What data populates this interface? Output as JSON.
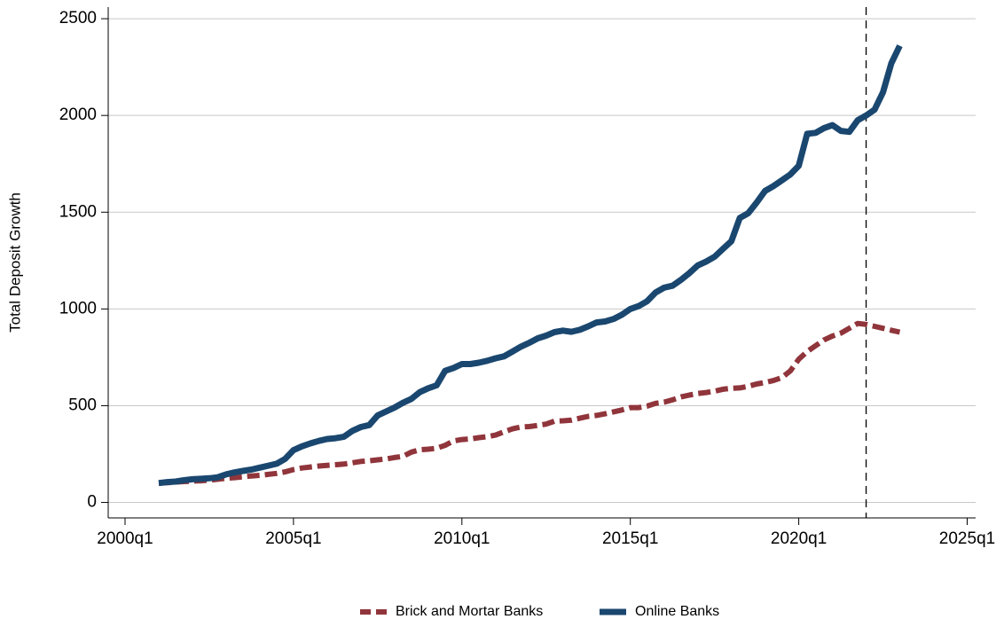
{
  "chart_data": {
    "type": "line",
    "y_label": "Total Deposit Growth",
    "x": [
      "2001q1",
      "2001q2",
      "2001q3",
      "2001q4",
      "2002q1",
      "2002q2",
      "2002q3",
      "2002q4",
      "2003q1",
      "2003q2",
      "2003q3",
      "2003q4",
      "2004q1",
      "2004q2",
      "2004q3",
      "2004q4",
      "2005q1",
      "2005q2",
      "2005q3",
      "2005q4",
      "2006q1",
      "2006q2",
      "2006q3",
      "2006q4",
      "2007q1",
      "2007q2",
      "2007q3",
      "2007q4",
      "2008q1",
      "2008q2",
      "2008q3",
      "2008q4",
      "2009q1",
      "2009q2",
      "2009q3",
      "2009q4",
      "2010q1",
      "2010q2",
      "2010q3",
      "2010q4",
      "2011q1",
      "2011q2",
      "2011q3",
      "2011q4",
      "2012q1",
      "2012q2",
      "2012q3",
      "2012q4",
      "2013q1",
      "2013q2",
      "2013q3",
      "2013q4",
      "2014q1",
      "2014q2",
      "2014q3",
      "2014q4",
      "2015q1",
      "2015q2",
      "2015q3",
      "2015q4",
      "2016q1",
      "2016q2",
      "2016q3",
      "2016q4",
      "2017q1",
      "2017q2",
      "2017q3",
      "2017q4",
      "2018q1",
      "2018q2",
      "2018q3",
      "2018q4",
      "2019q1",
      "2019q2",
      "2019q3",
      "2019q4",
      "2020q1",
      "2020q2",
      "2020q3",
      "2020q4",
      "2021q1",
      "2021q2",
      "2021q3",
      "2021q4",
      "2022q1",
      "2022q2",
      "2022q3",
      "2022q4",
      "2023q1"
    ],
    "series": [
      {
        "name": "Brick and Mortar Banks",
        "color": "#90353b",
        "dashed": true,
        "values": [
          100,
          102,
          105,
          108,
          110,
          112,
          115,
          120,
          125,
          128,
          132,
          137,
          140,
          145,
          150,
          158,
          170,
          178,
          183,
          188,
          192,
          195,
          198,
          205,
          212,
          215,
          220,
          225,
          232,
          238,
          260,
          272,
          275,
          280,
          295,
          318,
          325,
          328,
          335,
          340,
          348,
          365,
          380,
          390,
          392,
          398,
          405,
          420,
          422,
          425,
          435,
          445,
          450,
          458,
          468,
          478,
          490,
          490,
          498,
          512,
          518,
          530,
          545,
          555,
          563,
          568,
          575,
          585,
          590,
          592,
          600,
          612,
          620,
          630,
          645,
          680,
          740,
          780,
          810,
          840,
          860,
          875,
          900,
          925,
          920,
          910,
          900,
          890,
          880
        ]
      },
      {
        "name": "Online Banks",
        "color": "#1a476f",
        "dashed": false,
        "values": [
          100,
          105,
          108,
          115,
          120,
          122,
          125,
          130,
          145,
          155,
          163,
          170,
          180,
          190,
          200,
          225,
          270,
          290,
          305,
          318,
          328,
          332,
          340,
          370,
          390,
          400,
          450,
          470,
          490,
          515,
          535,
          570,
          590,
          605,
          680,
          695,
          715,
          715,
          722,
          732,
          745,
          755,
          780,
          805,
          825,
          848,
          862,
          880,
          888,
          882,
          892,
          910,
          930,
          935,
          948,
          970,
          1000,
          1015,
          1040,
          1085,
          1110,
          1120,
          1150,
          1185,
          1225,
          1245,
          1270,
          1310,
          1350,
          1470,
          1495,
          1550,
          1610,
          1635,
          1665,
          1695,
          1740,
          1905,
          1910,
          1935,
          1950,
          1920,
          1915,
          1975,
          2000,
          2030,
          2120,
          2270,
          2360
        ]
      }
    ],
    "xlim": [
      "1999q3",
      "2025q2"
    ],
    "xticks": [
      "2000q1",
      "2005q1",
      "2010q1",
      "2015q1",
      "2020q1",
      "2025q1"
    ],
    "ylim": [
      -80,
      2560
    ],
    "yticks": [
      0,
      500,
      1000,
      1500,
      2000,
      2500
    ],
    "grid": true,
    "vline": "2022q1",
    "legend": "bottom"
  }
}
